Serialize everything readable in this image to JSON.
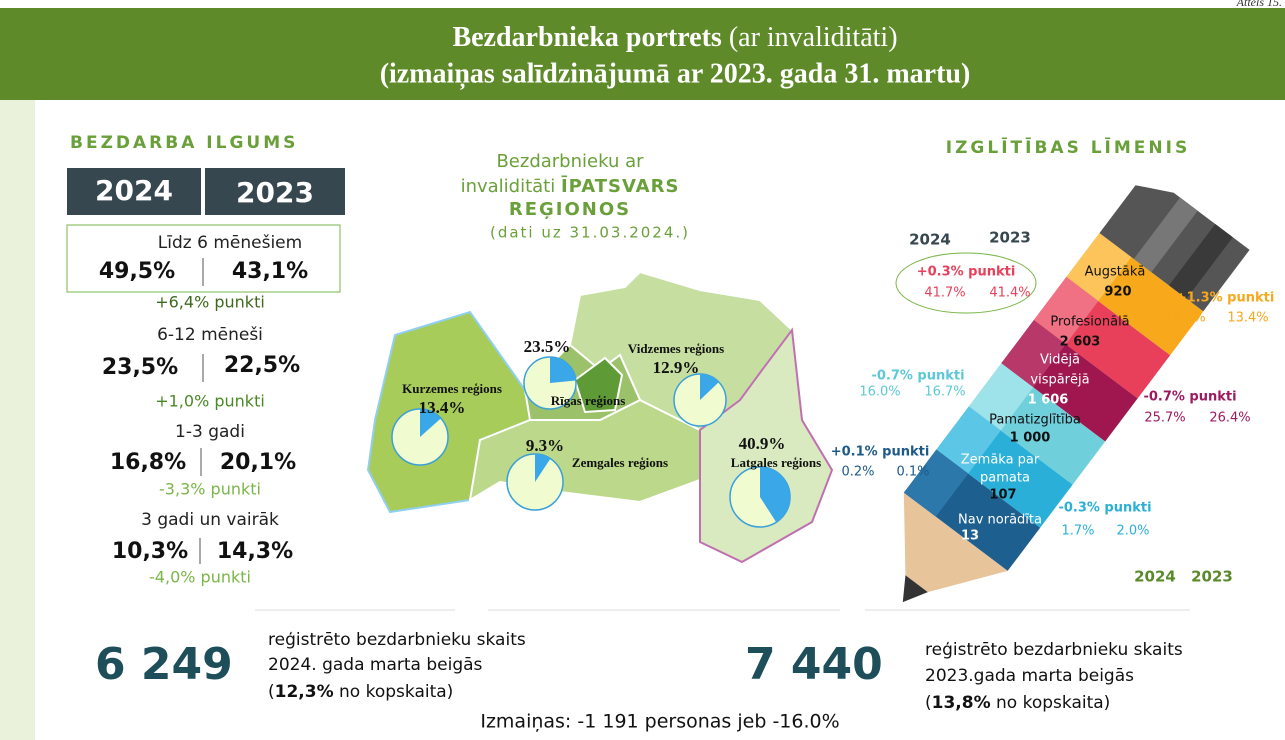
{
  "corner": "Attēls 15.",
  "header": {
    "title_bold": "Bezdarbnieka portrets",
    "title_normal": "(ar invaliditāti)",
    "subtitle": "(izmaiņas salīdzinājumā ar 2023. gada 31. martu)"
  },
  "duration": {
    "heading": "BEZDARBA ILGUMS",
    "years": [
      "2024",
      "2023"
    ],
    "items": [
      {
        "label": "Līdz 6 mēnešiem",
        "v2024": "49,5%",
        "v2023": "43,1%",
        "change": "+6,4% punkti"
      },
      {
        "label": "6-12 mēneši",
        "v2024": "23,5%",
        "v2023": "22,5%",
        "change": "+1,0% punkti"
      },
      {
        "label": "1-3 gadi",
        "v2024": "16,8%",
        "v2023": "20,1%",
        "change": "-3,3% punkti"
      },
      {
        "label": "3 gadi un vairāk",
        "v2024": "10,3%",
        "v2023": "14,3%",
        "change": "-4,0% punkti"
      }
    ]
  },
  "map": {
    "title_line1": "Bezdarbnieku ar",
    "title_line2a": "invaliditāti ",
    "title_line2b": "ĪPATSVARS",
    "title_line3": "REĢIONOS",
    "note": "(dati uz 31.03.2024.)",
    "regions": [
      {
        "name": "Kurzemes reģions",
        "value": 13.4,
        "value_label": "13.4%"
      },
      {
        "name": "Rīgas reģions",
        "value": 23.5,
        "value_label": "23.5%"
      },
      {
        "name": "Zemgales reģions",
        "value": 9.3,
        "value_label": "9.3%"
      },
      {
        "name": "Vidzemes reģions",
        "value": 12.9,
        "value_label": "12.9%"
      },
      {
        "name": "Latgales reģions",
        "value": 40.9,
        "value_label": "40.9%"
      }
    ]
  },
  "education": {
    "heading": "IZGLĪTĪBAS LĪMENIS",
    "years": [
      "2024",
      "2023"
    ],
    "levels": [
      {
        "name": "Augstākā",
        "count": "920",
        "change": "+1.3% punkti",
        "v2024": "14.7%",
        "v2023": "13.4%"
      },
      {
        "name": "Profesionālā",
        "count": "2 603",
        "change": "+0.3% punkti",
        "v2024": "41.7%",
        "v2023": "41.4%"
      },
      {
        "name": [
          "Vidējā",
          "vispārējā"
        ],
        "count": "1 606",
        "change": "-0.7% punkti",
        "v2024": "25.7%",
        "v2023": "26.4%"
      },
      {
        "name": "Pamatizglītība",
        "count": "1 000",
        "change": "-0.7% punkti",
        "v2024": "16.0%",
        "v2023": "16.7%"
      },
      {
        "name": [
          "Zemāka par",
          "pamata"
        ],
        "count": "107",
        "change": "-0.3% punkti",
        "v2024": "1.7%",
        "v2023": "2.0%"
      },
      {
        "name": "Nav norādīta",
        "count": "13",
        "change": "+0.1% punkti",
        "v2024": "0.2%",
        "v2023": "0.1%"
      }
    ]
  },
  "totals": {
    "count2024": "6 249",
    "text2024": [
      "reģistrēto bezdarbnieku skaits",
      "2024. gada marta beigās"
    ],
    "share2024_pre": "(",
    "share2024": "12,3%",
    "share2024_post": " no kopskaita)",
    "count2023": "7 440",
    "text2023": [
      "reģistrēto bezdarbnieku skaits",
      "2023.gada marta beigās"
    ],
    "share2023_pre": "(",
    "share2023": "13,8%",
    "share2023_post": " no kopskaita)",
    "change": "Izmaiņas: -1 191 personas jeb -16.0%"
  }
}
